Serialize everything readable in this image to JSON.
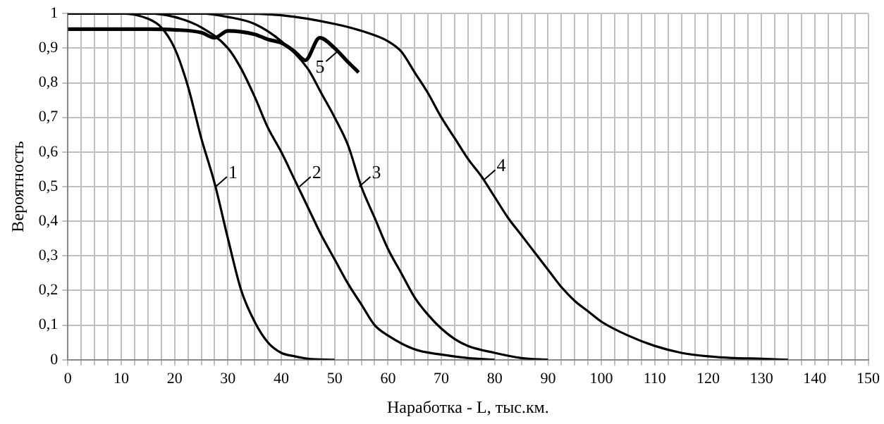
{
  "chart_data": {
    "type": "line",
    "xlabel": "Наработка - L, тыс.км.",
    "ylabel": "Вероятность",
    "xlim": [
      0,
      150
    ],
    "ylim": [
      0,
      1
    ],
    "xticks": [
      0,
      {
        "value": 2.5,
        "label": null
      },
      {
        "value": 5,
        "label": null
      },
      {
        "value": 7.5,
        "label": null
      },
      10,
      {
        "value": 12.5,
        "label": null
      },
      {
        "value": 15,
        "label": null
      },
      {
        "value": 17.5,
        "label": null
      },
      20,
      {
        "value": 22.5,
        "label": null
      },
      {
        "value": 25,
        "label": null
      },
      {
        "value": 27.5,
        "label": null
      },
      30,
      {
        "value": 32.5,
        "label": null
      },
      {
        "value": 35,
        "label": null
      },
      {
        "value": 37.5,
        "label": null
      },
      40,
      {
        "value": 42.5,
        "label": null
      },
      {
        "value": 45,
        "label": null
      },
      {
        "value": 47.5,
        "label": null
      },
      50,
      {
        "value": 52.5,
        "label": null
      },
      {
        "value": 55,
        "label": null
      },
      {
        "value": 57.5,
        "label": null
      },
      60,
      {
        "value": 62.5,
        "label": null
      },
      {
        "value": 65,
        "label": null
      },
      {
        "value": 67.5,
        "label": null
      },
      70,
      {
        "value": 72.5,
        "label": null
      },
      {
        "value": 75,
        "label": null
      },
      {
        "value": 77.5,
        "label": null
      },
      80,
      {
        "value": 82.5,
        "label": null
      },
      {
        "value": 85,
        "label": null
      },
      {
        "value": 87.5,
        "label": null
      },
      90,
      {
        "value": 92.5,
        "label": null
      },
      {
        "value": 95,
        "label": null
      },
      {
        "value": 97.5,
        "label": null
      },
      100,
      {
        "value": 102.5,
        "label": null
      },
      {
        "value": 105,
        "label": null
      },
      {
        "value": 107.5,
        "label": null
      },
      110,
      {
        "value": 112.5,
        "label": null
      },
      {
        "value": 115,
        "label": null
      },
      {
        "value": 117.5,
        "label": null
      },
      120,
      {
        "value": 122.5,
        "label": null
      },
      {
        "value": 125,
        "label": null
      },
      {
        "value": 127.5,
        "label": null
      },
      130,
      {
        "value": 132.5,
        "label": null
      },
      {
        "value": 135,
        "label": null
      },
      {
        "value": 137.5,
        "label": null
      },
      140,
      {
        "value": 142.5,
        "label": null
      },
      {
        "value": 145,
        "label": null
      },
      {
        "value": 147.5,
        "label": null
      },
      150
    ],
    "yticks": [
      0,
      {
        "value": 0.1,
        "label": "0,1"
      },
      {
        "value": 0.2,
        "label": "0,2"
      },
      {
        "value": 0.3,
        "label": "0,3"
      },
      {
        "value": 0.4,
        "label": "0,4"
      },
      {
        "value": 0.5,
        "label": "0,5"
      },
      {
        "value": 0.6,
        "label": "0,6"
      },
      {
        "value": 0.7,
        "label": "0,7"
      },
      {
        "value": 0.8,
        "label": "0,8"
      },
      {
        "value": 0.9,
        "label": "0,9"
      },
      1
    ],
    "grid": true,
    "marker": "none",
    "line_style": "solid",
    "series": [
      {
        "color": "#000000",
        "x": [
          0,
          10,
          15,
          17.5,
          20,
          22.5,
          25,
          27.5,
          30,
          32.5,
          35,
          37.5,
          40,
          42.5,
          45,
          50
        ],
        "values": [
          1,
          1,
          0.985,
          0.96,
          0.9,
          0.79,
          0.64,
          0.51,
          0.35,
          0.2,
          0.11,
          0.05,
          0.02,
          0.01,
          0.003,
          0
        ]
      },
      {
        "color": "#000000",
        "x": [
          0,
          15,
          20,
          25,
          30,
          32.5,
          35,
          37.5,
          40,
          42.5,
          45,
          47.5,
          50,
          52.5,
          55,
          57.5,
          60,
          65,
          70,
          75,
          80
        ],
        "values": [
          1,
          1,
          0.99,
          0.96,
          0.9,
          0.84,
          0.76,
          0.67,
          0.6,
          0.52,
          0.44,
          0.36,
          0.29,
          0.22,
          0.16,
          0.1,
          0.07,
          0.03,
          0.015,
          0.005,
          0
        ]
      },
      {
        "color": "#000000",
        "x": [
          0,
          25,
          30,
          35,
          40,
          45,
          47.5,
          50,
          52.5,
          55,
          57.5,
          60,
          62.5,
          65,
          67.5,
          70,
          72.5,
          75,
          80,
          85,
          90
        ],
        "values": [
          1,
          1,
          0.99,
          0.97,
          0.92,
          0.84,
          0.77,
          0.7,
          0.62,
          0.5,
          0.41,
          0.32,
          0.25,
          0.18,
          0.13,
          0.09,
          0.06,
          0.04,
          0.02,
          0.005,
          0
        ]
      },
      {
        "color": "#000000",
        "x": [
          0,
          30,
          40,
          50,
          55,
          60,
          62.5,
          65,
          67.5,
          70,
          72.5,
          75,
          77.5,
          80,
          82.5,
          85,
          87.5,
          90,
          92.5,
          95,
          97.5,
          100,
          105,
          110,
          115,
          120,
          125,
          130,
          135
        ],
        "values": [
          1,
          1,
          0.995,
          0.97,
          0.95,
          0.92,
          0.89,
          0.83,
          0.77,
          0.7,
          0.64,
          0.58,
          0.53,
          0.47,
          0.41,
          0.36,
          0.31,
          0.26,
          0.21,
          0.17,
          0.14,
          0.11,
          0.07,
          0.04,
          0.02,
          0.01,
          0.005,
          0.003,
          0
        ]
      },
      {
        "color": "#000000",
        "x": [
          0,
          15,
          20,
          25,
          27.5,
          30,
          35,
          37.5,
          40,
          42.5,
          44.5,
          47.2,
          50,
          52.5,
          54.5
        ],
        "values": [
          0.955,
          0.955,
          0.953,
          0.945,
          0.93,
          0.95,
          0.94,
          0.925,
          0.915,
          0.89,
          0.865,
          0.93,
          0.9,
          0.86,
          0.83
        ]
      }
    ],
    "annotations": [
      {
        "text": "1",
        "x": 27.7,
        "y": 0.5
      },
      {
        "text": "2",
        "x": 43.4,
        "y": 0.5
      },
      {
        "text": "3",
        "x": 54.6,
        "y": 0.5
      },
      {
        "text": "4",
        "x": 78,
        "y": 0.52
      },
      {
        "text": "5",
        "x": 50.5,
        "y": 0.89
      }
    ]
  }
}
